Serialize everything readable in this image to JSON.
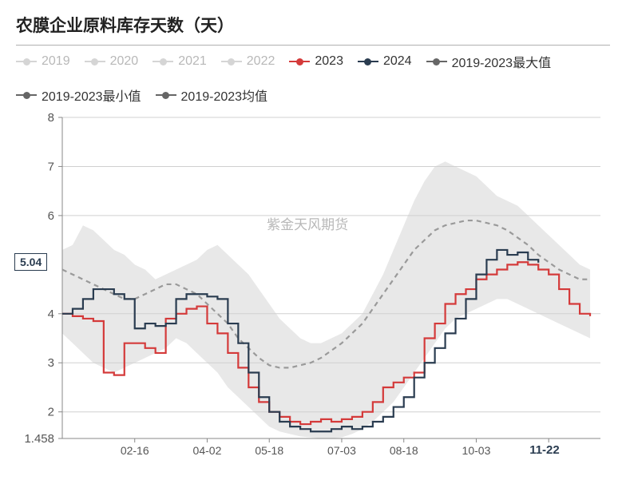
{
  "title": "农膜企业原料库存天数（天）",
  "watermark": "紫金天风期货",
  "legend": [
    {
      "label": "2019",
      "color": "#888888",
      "style": "dot-line",
      "active": false
    },
    {
      "label": "2020",
      "color": "#888888",
      "style": "dot-line",
      "active": false
    },
    {
      "label": "2021",
      "color": "#888888",
      "style": "dot-line",
      "active": false
    },
    {
      "label": "2022",
      "color": "#888888",
      "style": "dot-line",
      "active": false
    },
    {
      "label": "2023",
      "color": "#d43a3a",
      "style": "dot-line",
      "active": true
    },
    {
      "label": "2024",
      "color": "#2a3c50",
      "style": "dot-line",
      "active": true
    },
    {
      "label": "2019-2023最大值",
      "color": "#666666",
      "style": "dot-line",
      "active": true
    },
    {
      "label": "2019-2023最小值",
      "color": "#666666",
      "style": "dot-line",
      "active": true
    },
    {
      "label": "2019-2023均值",
      "color": "#666666",
      "style": "dot-line",
      "active": true
    }
  ],
  "chart": {
    "type": "line",
    "background_color": "#ffffff",
    "band_color": "#e8e8e8",
    "grid_color": "#d0d0d0",
    "axis_color": "#888888",
    "ylim": [
      1.458,
      8
    ],
    "yticks": [
      1.458,
      2,
      3,
      4,
      5.04,
      6,
      7,
      8
    ],
    "ytick_labels": [
      "1.458",
      "2",
      "3",
      "4",
      "5.04",
      "6",
      "7",
      "8"
    ],
    "y_highlight": {
      "value": 5.04,
      "label": "5.04"
    },
    "xlim": [
      0,
      52
    ],
    "xticks": [
      7,
      14,
      20,
      27,
      33,
      40,
      47
    ],
    "xtick_labels": [
      "02-16",
      "04-02",
      "05-18",
      "07-03",
      "08-18",
      "10-03",
      "11-22"
    ],
    "x_highlight_index": 6,
    "title_fontsize": 21,
    "label_fontsize": 14,
    "line_width": 2.2,
    "series": {
      "max": {
        "color": "#e8e8e8",
        "y": [
          5.3,
          5.4,
          5.8,
          5.7,
          5.5,
          5.3,
          5.2,
          5.0,
          4.9,
          4.7,
          4.8,
          4.9,
          5.0,
          5.1,
          5.3,
          5.4,
          5.2,
          5.0,
          4.8,
          4.5,
          4.2,
          3.9,
          3.7,
          3.5,
          3.4,
          3.4,
          3.5,
          3.6,
          3.8,
          4.0,
          4.4,
          4.8,
          5.3,
          5.8,
          6.3,
          6.7,
          7.0,
          7.1,
          7.0,
          6.9,
          6.8,
          6.6,
          6.4,
          6.3,
          6.2,
          6.0,
          5.8,
          5.6,
          5.4,
          5.2,
          5.0,
          4.9
        ]
      },
      "min": {
        "color": "#e8e8e8",
        "y": [
          3.6,
          3.4,
          3.2,
          3.0,
          2.9,
          2.8,
          2.9,
          3.0,
          3.1,
          3.2,
          3.3,
          3.5,
          3.4,
          3.2,
          3.0,
          2.8,
          2.5,
          2.3,
          2.1,
          1.9,
          1.7,
          1.6,
          1.55,
          1.5,
          1.48,
          1.46,
          1.46,
          1.48,
          1.55,
          1.65,
          1.8,
          2.0,
          2.2,
          2.5,
          2.8,
          3.1,
          3.4,
          3.7,
          3.9,
          4.0,
          4.1,
          4.2,
          4.3,
          4.3,
          4.2,
          4.1,
          4.0,
          3.9,
          3.8,
          3.7,
          3.6,
          3.5
        ]
      },
      "mean": {
        "color": "#9a9a9a",
        "dash": "6 5",
        "y": [
          4.9,
          4.8,
          4.7,
          4.6,
          4.5,
          4.4,
          4.3,
          4.3,
          4.4,
          4.5,
          4.6,
          4.6,
          4.5,
          4.4,
          4.2,
          4.0,
          3.8,
          3.5,
          3.3,
          3.1,
          2.95,
          2.9,
          2.9,
          2.95,
          3.0,
          3.1,
          3.25,
          3.4,
          3.6,
          3.8,
          4.1,
          4.4,
          4.7,
          5.0,
          5.3,
          5.5,
          5.7,
          5.8,
          5.85,
          5.9,
          5.9,
          5.85,
          5.8,
          5.7,
          5.55,
          5.4,
          5.2,
          5.05,
          4.9,
          4.8,
          4.7,
          4.7
        ]
      },
      "y2023": {
        "color": "#d43a3a",
        "step": true,
        "y": [
          4.0,
          3.95,
          3.9,
          3.85,
          2.8,
          2.75,
          3.4,
          3.4,
          3.3,
          3.2,
          3.9,
          4.0,
          4.1,
          4.15,
          3.8,
          3.6,
          3.2,
          2.9,
          2.5,
          2.2,
          2.0,
          1.9,
          1.8,
          1.75,
          1.8,
          1.85,
          1.8,
          1.85,
          1.9,
          2.0,
          2.2,
          2.5,
          2.6,
          2.7,
          2.8,
          3.5,
          3.8,
          4.2,
          4.4,
          4.5,
          4.7,
          4.8,
          4.9,
          5.0,
          5.05,
          5.0,
          4.9,
          4.8,
          4.5,
          4.2,
          4.0,
          3.95
        ]
      },
      "y2024": {
        "color": "#2a3c50",
        "step": true,
        "y": [
          4.0,
          4.1,
          4.3,
          4.5,
          4.5,
          4.4,
          4.3,
          3.7,
          3.8,
          3.75,
          3.8,
          4.3,
          4.4,
          4.4,
          4.35,
          4.3,
          3.8,
          3.4,
          2.8,
          2.3,
          2.0,
          1.8,
          1.7,
          1.65,
          1.6,
          1.6,
          1.65,
          1.7,
          1.65,
          1.7,
          1.8,
          1.9,
          2.1,
          2.3,
          2.7,
          3.0,
          3.3,
          3.6,
          3.9,
          4.3,
          4.8,
          5.1,
          5.3,
          5.2,
          5.25,
          5.1,
          5.04
        ]
      }
    }
  }
}
